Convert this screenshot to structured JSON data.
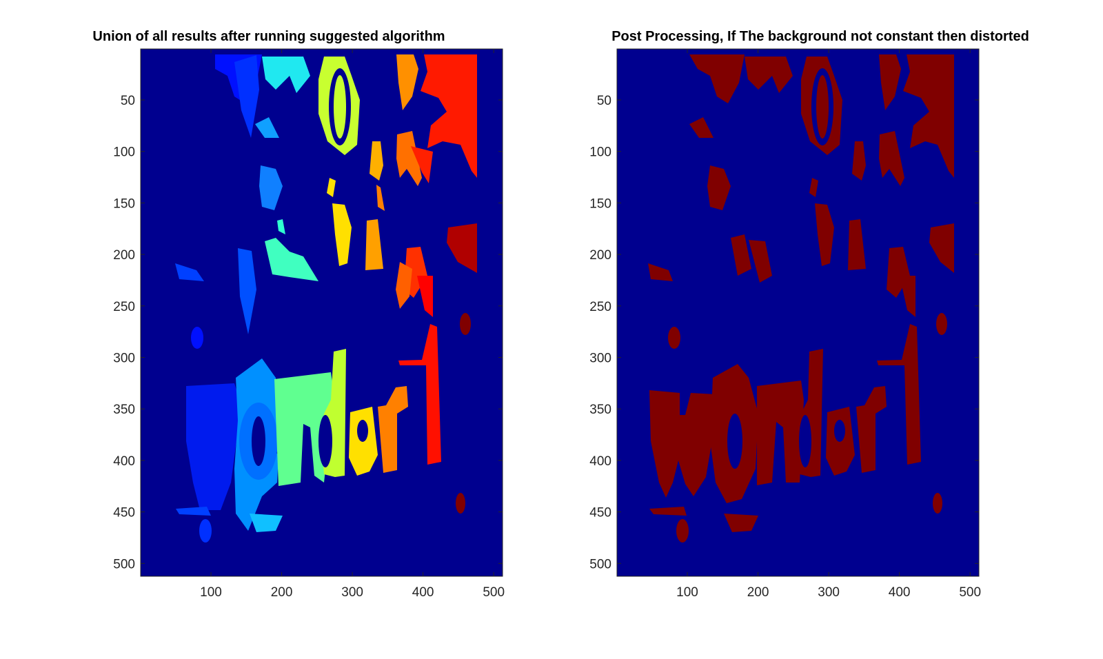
{
  "figure": {
    "colors": {
      "background": "#00008F",
      "dark_red": "#800000",
      "tick": "#262626"
    }
  },
  "chart_data": [
    {
      "type": "heatmap",
      "title": "Union of all results after running suggested algorithm",
      "xlabel": "",
      "ylabel": "",
      "colormap": "jet",
      "xlim": [
        0.5,
        512.5
      ],
      "ylim": [
        0.5,
        512.5
      ],
      "x_ticks": [
        100,
        200,
        300,
        400,
        500
      ],
      "y_ticks": [
        50,
        100,
        150,
        200,
        250,
        300,
        350,
        400,
        450,
        500
      ],
      "y_reversed": true,
      "visible_text_in_image": "onder"
    },
    {
      "type": "heatmap",
      "title": "Post Processing, If The background not constant then distorted",
      "xlabel": "",
      "ylabel": "",
      "colormap": "jet",
      "xlim": [
        0.5,
        512.5
      ],
      "ylim": [
        0.5,
        512.5
      ],
      "x_ticks": [
        100,
        200,
        300,
        400,
        500
      ],
      "y_ticks": [
        50,
        100,
        150,
        200,
        250,
        300,
        350,
        400,
        450,
        500
      ],
      "y_reversed": true,
      "visible_text_in_image": "wonder"
    }
  ]
}
